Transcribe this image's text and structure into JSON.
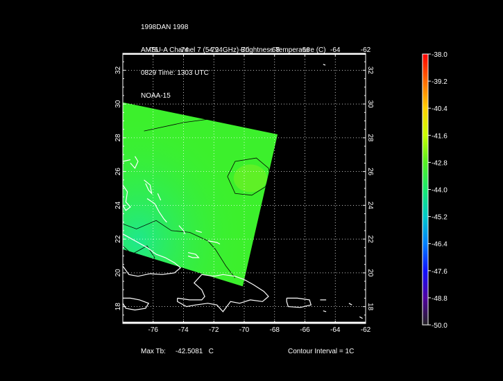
{
  "header": {
    "line1": "1998DAN 1998",
    "line2": "AMSU-A Channel 7 (54.94GHz) Brightness Temperature (C)",
    "line3": "0829 Time: 1303 UTC",
    "line4": "NOAA-15"
  },
  "footer": {
    "max_tb_label": "Max Tb:",
    "max_tb_value": "-42.5081",
    "max_tb_unit": "C",
    "contour_interval": "Contour Interval = 1C"
  },
  "map": {
    "lon_range": [
      -78,
      -62
    ],
    "lat_range": [
      17,
      33
    ],
    "lon_ticks": [
      "-76",
      "-74",
      "-72",
      "-70",
      "-68",
      "-66",
      "-64",
      "-62"
    ],
    "lat_ticks": [
      "18",
      "20",
      "22",
      "24",
      "26",
      "28",
      "30",
      "32"
    ],
    "swath_corners_lonlat": [
      [
        -78,
        30.1
      ],
      [
        -67.8,
        28.2
      ],
      [
        -70.1,
        19.2
      ],
      [
        -78,
        21.4
      ]
    ],
    "colors": {
      "swath_main": "#3cf02c",
      "swath_cool": "#22e878",
      "swath_warm": "#68f025",
      "coastline": "#ffffff",
      "contour": "#000000",
      "grid": "#ffffff"
    }
  },
  "colorbar": {
    "labels": [
      "-38.0",
      "-39.2",
      "-40.4",
      "-41.6",
      "-42.8",
      "-44.0",
      "-45.2",
      "-46.4",
      "-47.6",
      "-48.8",
      "-50.0"
    ],
    "range": [
      -50.0,
      -38.0
    ],
    "color_stops": [
      "#ff0000",
      "#ff6a00",
      "#ffd000",
      "#c8ff00",
      "#55ee22",
      "#19e86e",
      "#00c8c8",
      "#0080ff",
      "#1010ff",
      "#5000a0",
      "#222222"
    ]
  }
}
